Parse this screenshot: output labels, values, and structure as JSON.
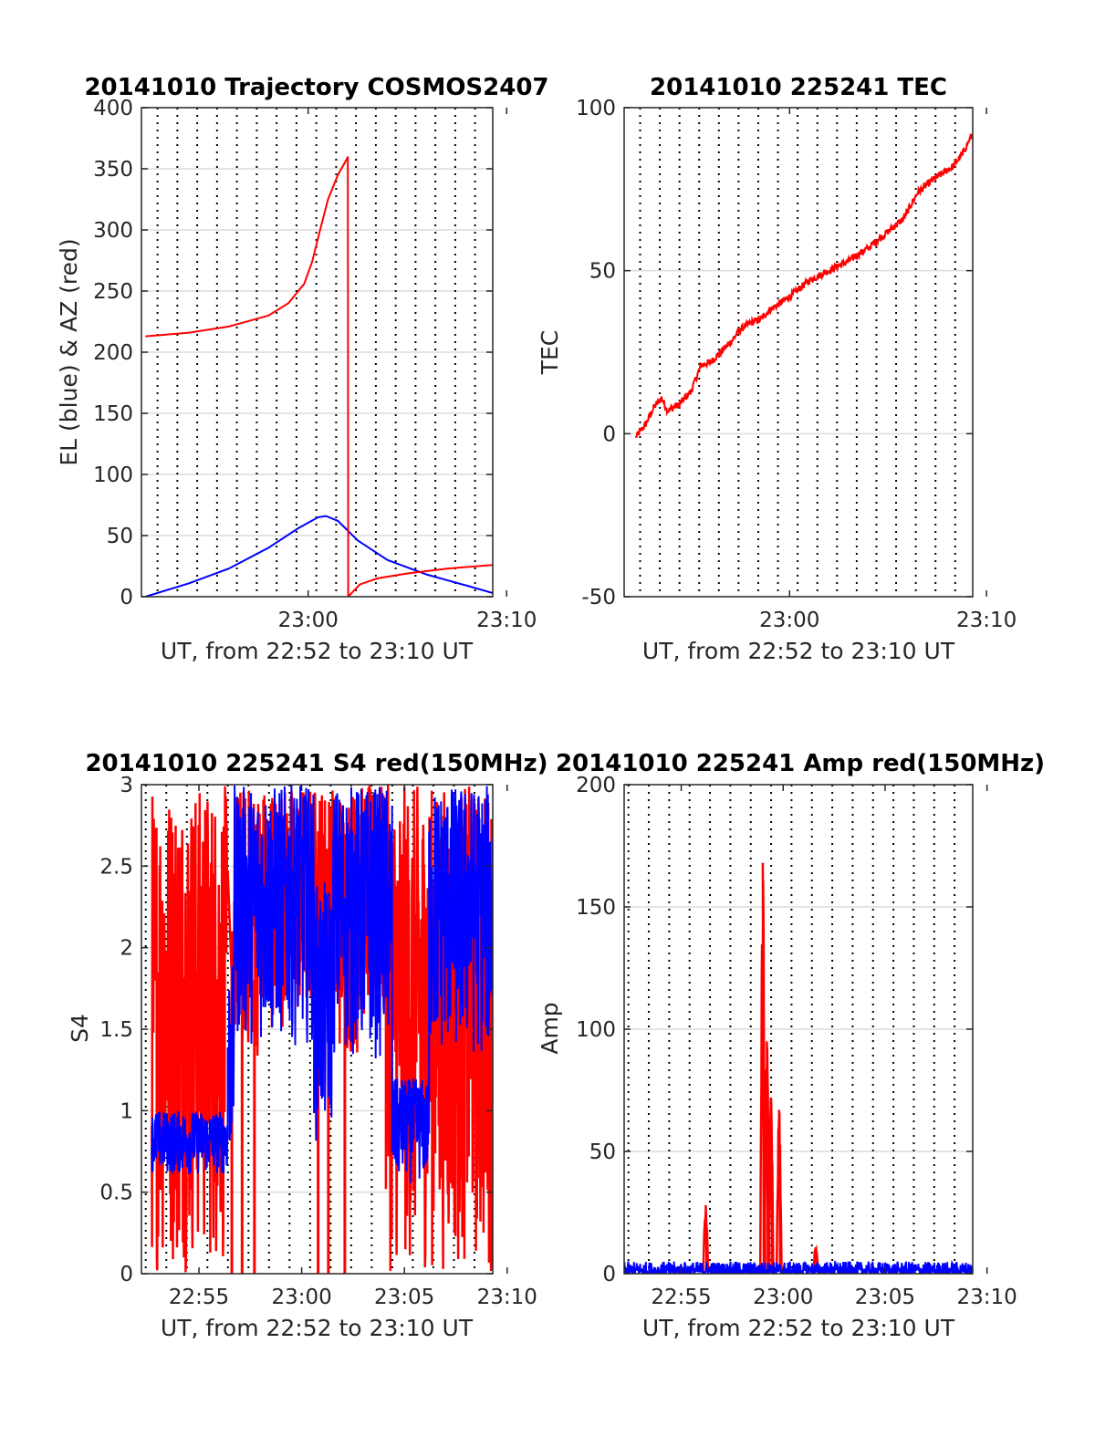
{
  "chart_data": [
    {
      "type": "line",
      "title": "20141010 Trajectory COSMOS2407",
      "xlabel": "UT, from 22:52 to 23:10 UT",
      "ylabel": "EL (blue) & AZ (red)",
      "xlim": [
        -8.4,
        9.3
      ],
      "ylim": [
        0,
        400
      ],
      "x_unit": "minutes relative to 23:00 UT",
      "xticks": [
        {
          "x": 0,
          "label": "23:00"
        },
        {
          "x": 10,
          "label": "23:10"
        }
      ],
      "yticks": [
        0,
        50,
        100,
        150,
        200,
        250,
        300,
        350,
        400
      ],
      "grid": "on",
      "series": [
        {
          "color": "#0000ff",
          "points": [
            [
              -8.2,
              0
            ],
            [
              -6,
              11
            ],
            [
              -4,
              23
            ],
            [
              -2,
              40
            ],
            [
              -0.5,
              56
            ],
            [
              0.5,
              65
            ],
            [
              0.9,
              66
            ],
            [
              1.5,
              62
            ],
            [
              2.5,
              46
            ],
            [
              4,
              30
            ],
            [
              6,
              18
            ],
            [
              8,
              9
            ],
            [
              9.3,
              3
            ]
          ]
        },
        {
          "color": "#ff0000",
          "points": [
            [
              -8.2,
              213
            ],
            [
              -6,
              216
            ],
            [
              -4,
              221
            ],
            [
              -2,
              230
            ],
            [
              -1,
              240
            ],
            [
              -0.2,
              256
            ],
            [
              0.2,
              274
            ],
            [
              0.6,
              300
            ],
            [
              1,
              325
            ],
            [
              1.5,
              345
            ],
            [
              1.95,
              358
            ],
            [
              2.0,
              360
            ],
            [
              2.02,
              0
            ],
            [
              2.6,
              10
            ],
            [
              3.5,
              15
            ],
            [
              5,
              19
            ],
            [
              7,
              23
            ],
            [
              9.3,
              26
            ]
          ]
        }
      ]
    },
    {
      "type": "line",
      "title": "20141010 225241 TEC",
      "xlabel": "UT, from 22:52 to 23:10 UT",
      "ylabel": "TEC",
      "xlim": [
        -8.4,
        9.3
      ],
      "ylim": [
        -50,
        100
      ],
      "x_unit": "minutes relative to 23:00 UT",
      "xticks": [
        {
          "x": 0,
          "label": "23:00"
        },
        {
          "x": 10,
          "label": "23:10"
        }
      ],
      "yticks": [
        -50,
        0,
        50,
        100
      ],
      "grid": "on",
      "series": [
        {
          "color": "#ff0000",
          "points": [
            [
              -7.8,
              -1
            ],
            [
              -7.3,
              3
            ],
            [
              -6.9,
              8
            ],
            [
              -6.5,
              11
            ],
            [
              -6.2,
              7
            ],
            [
              -5.6,
              9
            ],
            [
              -5,
              13
            ],
            [
              -4.5,
              21
            ],
            [
              -4,
              22
            ],
            [
              -3.5,
              25
            ],
            [
              -3,
              28
            ],
            [
              -2.5,
              32
            ],
            [
              -2,
              34
            ],
            [
              -1.5,
              35
            ],
            [
              -1,
              38
            ],
            [
              0,
              42
            ],
            [
              1,
              47
            ],
            [
              2,
              50
            ],
            [
              3,
              53
            ],
            [
              4,
              57
            ],
            [
              5,
              62
            ],
            [
              5.8,
              66
            ],
            [
              6.5,
              74
            ],
            [
              7.3,
              78
            ],
            [
              8.3,
              82
            ],
            [
              8.8,
              86
            ],
            [
              9.2,
              91
            ],
            [
              9.3,
              91
            ]
          ]
        }
      ]
    },
    {
      "type": "line",
      "title": "20141010 225241 S4 red(150MHz)",
      "xlabel": "UT, from 22:52 to 23:10 UT",
      "ylabel": "S4",
      "xlim": [
        -7.8,
        9.3
      ],
      "ylim": [
        0,
        3
      ],
      "x_unit": "minutes relative to 23:00 UT",
      "xticks": [
        {
          "x": -5,
          "label": "22:55"
        },
        {
          "x": 0,
          "label": "23:00"
        },
        {
          "x": 5,
          "label": "23:05"
        },
        {
          "x": 10,
          "label": "23:10"
        }
      ],
      "yticks": [
        0,
        0.5,
        1,
        1.5,
        2,
        2.5,
        3
      ],
      "grid": "on",
      "series": [
        {
          "color": "#ff0000",
          "noise_bands": [
            [
              -7.3,
              -3.6,
              0,
              3
            ],
            [
              -3.3,
              -2.1,
              1.3,
              3
            ],
            [
              -2.1,
              -0.1,
              1.5,
              3
            ],
            [
              -0.1,
              1.6,
              1.5,
              3
            ],
            [
              1.6,
              2.8,
              1.3,
              3
            ],
            [
              2.8,
              4.1,
              1.5,
              3
            ],
            [
              4.1,
              9.3,
              0,
              3
            ]
          ],
          "spikes": [
            [
              -3.4,
              0,
              2.1
            ],
            [
              -2.9,
              0,
              2.0
            ],
            [
              -2.3,
              0,
              1.8
            ],
            [
              0.8,
              0,
              1.6
            ],
            [
              1.3,
              0,
              2.0
            ],
            [
              2.1,
              0,
              1.5
            ]
          ]
        },
        {
          "color": "#0000ff",
          "noise_bands": [
            [
              -7.3,
              -3.6,
              0.6,
              1.0
            ],
            [
              -3.6,
              -3.3,
              0.65,
              1.9
            ],
            [
              -3.3,
              0.6,
              1.4,
              3.0
            ],
            [
              0.6,
              1.5,
              0.8,
              2.4
            ],
            [
              1.5,
              4.4,
              1.3,
              3.0
            ],
            [
              4.4,
              6.2,
              0.55,
              1.2
            ],
            [
              6.2,
              9.3,
              1.3,
              3.0
            ]
          ]
        }
      ]
    },
    {
      "type": "line",
      "title": "20141010 225241 Amp red(150MHz)",
      "xlabel": "UT, from 22:52 to 23:10 UT",
      "ylabel": "Amp",
      "xlim": [
        -7.8,
        9.3
      ],
      "ylim": [
        0,
        200
      ],
      "x_unit": "minutes relative to 23:00 UT",
      "xticks": [
        {
          "x": -5,
          "label": "22:55"
        },
        {
          "x": 0,
          "label": "23:00"
        },
        {
          "x": 5,
          "label": "23:05"
        },
        {
          "x": 10,
          "label": "23:10"
        }
      ],
      "yticks": [
        0,
        50,
        100,
        150,
        200
      ],
      "grid": "on",
      "series": [
        {
          "color": "#ff0000",
          "peaks": [
            [
              -3.8,
              28
            ],
            [
              -1.0,
              168
            ],
            [
              -0.8,
              95
            ],
            [
              -0.6,
              72
            ],
            [
              -0.2,
              67
            ],
            [
              1.6,
              10
            ]
          ]
        },
        {
          "color": "#0000ff",
          "noise_bands": [
            [
              -7.8,
              9.3,
              0,
              5
            ]
          ]
        }
      ]
    }
  ]
}
